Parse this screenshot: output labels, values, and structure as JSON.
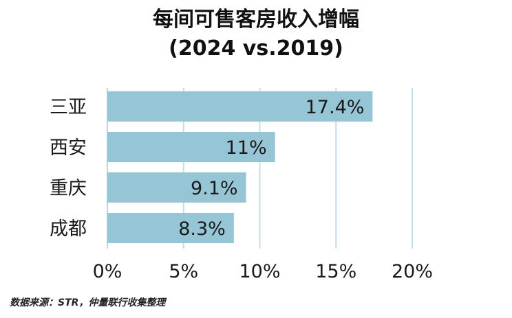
{
  "title_line1": "每间可售客房收入增幅",
  "title_line2": "(2024 vs.2019)",
  "source": "数据来源：STR，仲量联行收集整理",
  "colors": {
    "bar": "#96c6d5",
    "grid": "#c5dde6",
    "axis": "#bcd6e0",
    "text": "#1a1a1a"
  },
  "chart_data": {
    "type": "bar",
    "orientation": "horizontal",
    "title": "每间可售客房收入增幅 (2024 vs.2019)",
    "categories": [
      "三亚",
      "西安",
      "重庆",
      "成都"
    ],
    "values": [
      17.4,
      11,
      9.1,
      8.3
    ],
    "value_labels": [
      "17.4%",
      "11%",
      "9.1%",
      "8.3%"
    ],
    "xlim": [
      0,
      20
    ],
    "xticks": [
      0,
      5,
      10,
      15,
      20
    ],
    "xtick_labels": [
      "0%",
      "5%",
      "10%",
      "15%",
      "20%"
    ],
    "xlabel": "",
    "ylabel": "",
    "grid": true,
    "legend": "none"
  }
}
